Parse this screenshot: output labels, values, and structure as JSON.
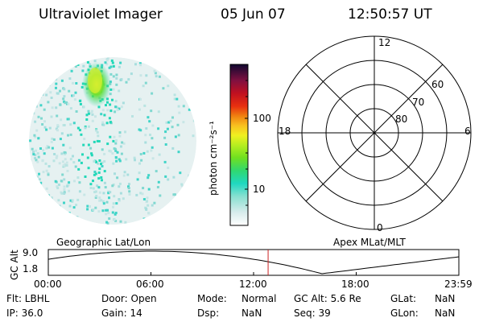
{
  "header": {
    "instrument": "Ultraviolet Imager",
    "date": "05 Jun 07",
    "time": "12:50:57 UT"
  },
  "colorbar": {
    "unit_label": "photon cm⁻²s⁻¹",
    "ticks": [
      "100",
      "10"
    ]
  },
  "polar_plot": {
    "mlt_labels": {
      "top": "12",
      "left": "18",
      "right": "6",
      "bottom": "0"
    },
    "lat_labels": [
      "60",
      "70",
      "80"
    ]
  },
  "panel_labels": {
    "left": "Geographic Lat/Lon",
    "right": "Apex MLat/MLT"
  },
  "altitude_plot": {
    "axis_label": "GC Alt",
    "y_ticks": [
      "9.0",
      "1.8"
    ],
    "x_ticks": [
      "00:00",
      "06:00",
      "12:00",
      "18:00",
      "23:59"
    ],
    "current_time_marker_hours": 12.85,
    "marker_color": "#cc2222"
  },
  "status": {
    "flt": "Flt: LBHL",
    "door": "Door: Open",
    "mode_key": "Mode:",
    "mode_val": "Normal",
    "gc_alt": "GC Alt: 5.6 Re",
    "glat_key": "GLat:",
    "glat_val": "NaN",
    "ip": "IP: 36.0",
    "gain": "Gain: 14",
    "dsp_key": "Dsp:",
    "dsp_val": "NaN",
    "seq": "Seq: 39",
    "glon_key": "GLon:",
    "glon_val": "NaN"
  }
}
